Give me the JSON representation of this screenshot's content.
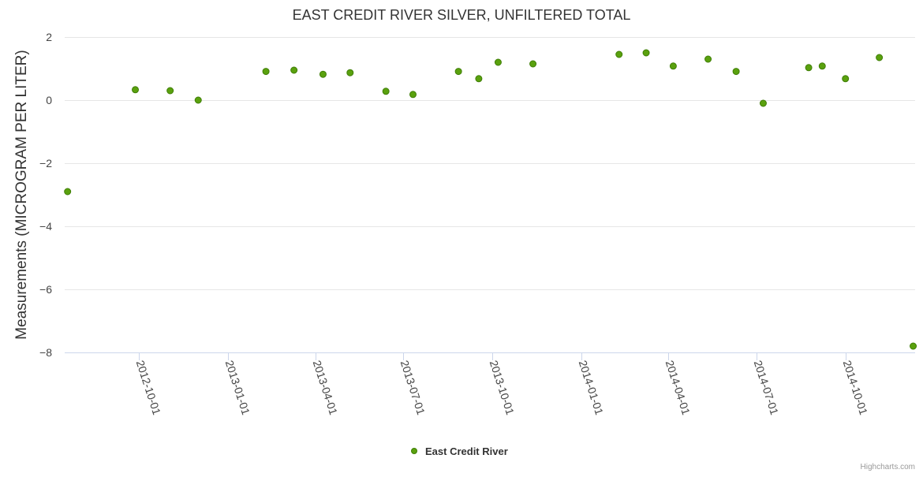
{
  "chart_data": {
    "type": "scatter",
    "title": "EAST CREDIT RIVER SILVER, UNFILTERED TOTAL",
    "xlabel": "",
    "ylabel": "Measurements (MICROGRAM PER LITER)",
    "ylim": [
      -8,
      2
    ],
    "yticks": [
      2,
      0,
      -2,
      -4,
      -6,
      -8
    ],
    "xlim": [
      "2012-07-16",
      "2014-12-12"
    ],
    "xticks": [
      "2012-10-01",
      "2013-01-01",
      "2013-04-01",
      "2013-07-01",
      "2013-10-01",
      "2014-01-01",
      "2014-04-01",
      "2014-07-01",
      "2014-10-01"
    ],
    "grid": true,
    "legend_position": "bottom-center",
    "series": [
      {
        "name": "East Credit River",
        "color": "#5aa10e",
        "stroke": "#3f7e07",
        "points": [
          {
            "x": "2012-07-19",
            "y": -2.9
          },
          {
            "x": "2012-09-27",
            "y": 0.33
          },
          {
            "x": "2012-11-02",
            "y": 0.3
          },
          {
            "x": "2012-12-01",
            "y": 0.0
          },
          {
            "x": "2013-02-09",
            "y": 0.91
          },
          {
            "x": "2013-03-10",
            "y": 0.95
          },
          {
            "x": "2013-04-09",
            "y": 0.82
          },
          {
            "x": "2013-05-07",
            "y": 0.87
          },
          {
            "x": "2013-06-13",
            "y": 0.28
          },
          {
            "x": "2013-07-11",
            "y": 0.18
          },
          {
            "x": "2013-08-27",
            "y": 0.91
          },
          {
            "x": "2013-09-17",
            "y": 0.68
          },
          {
            "x": "2013-10-07",
            "y": 1.2
          },
          {
            "x": "2013-11-12",
            "y": 1.15
          },
          {
            "x": "2014-02-09",
            "y": 1.45
          },
          {
            "x": "2014-03-09",
            "y": 1.5
          },
          {
            "x": "2014-04-06",
            "y": 1.08
          },
          {
            "x": "2014-05-12",
            "y": 1.3
          },
          {
            "x": "2014-06-10",
            "y": 0.91
          },
          {
            "x": "2014-07-08",
            "y": -0.1
          },
          {
            "x": "2014-08-24",
            "y": 1.03
          },
          {
            "x": "2014-09-07",
            "y": 1.08
          },
          {
            "x": "2014-10-01",
            "y": 0.68
          },
          {
            "x": "2014-11-05",
            "y": 1.35
          },
          {
            "x": "2014-12-10",
            "y": -7.8
          }
        ]
      }
    ]
  },
  "credits": "Highcharts.com"
}
